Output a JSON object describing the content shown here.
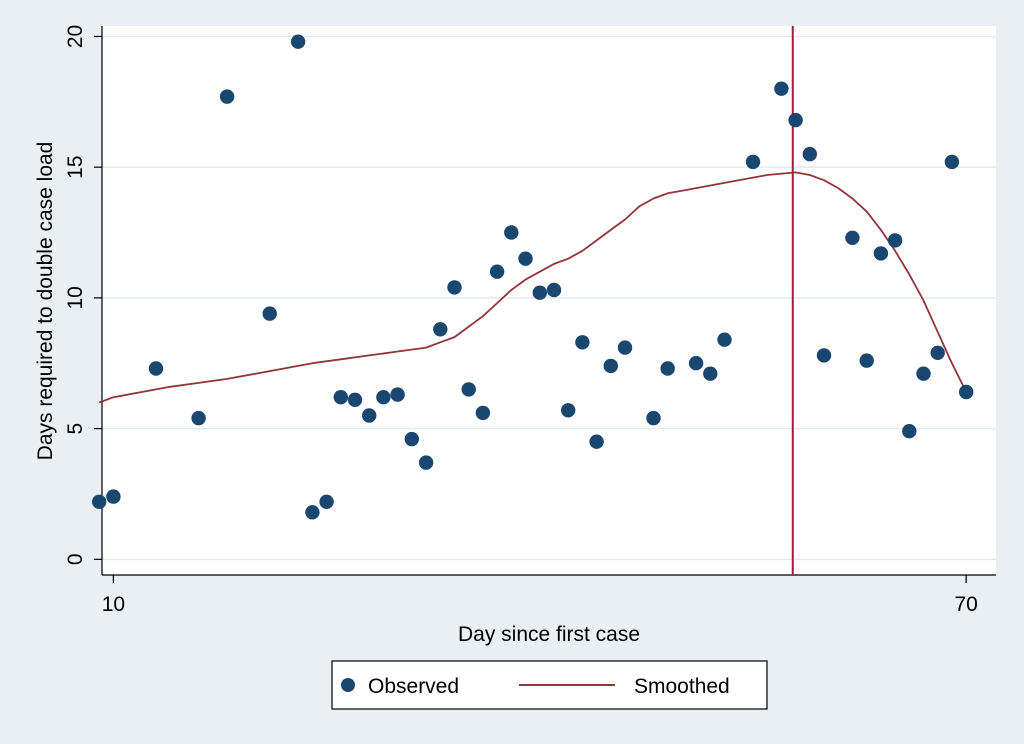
{
  "chart_data": {
    "type": "scatter",
    "title": "",
    "xlabel": "Day since first case",
    "ylabel": "Days required to double case load",
    "xlim": [
      9.2,
      72.1
    ],
    "ylim": [
      -0.6,
      20.4
    ],
    "xticks": [
      10,
      70
    ],
    "yticks": [
      0,
      5,
      10,
      15,
      20
    ],
    "grid": "horizontal",
    "legend_position": "bottom",
    "vline": {
      "x": 57.8,
      "color": "#a6193b"
    },
    "series": [
      {
        "name": "Observed",
        "kind": "scatter",
        "color": "#1a476f",
        "points": [
          [
            9,
            2.2
          ],
          [
            10,
            2.4
          ],
          [
            13,
            7.3
          ],
          [
            16,
            5.4
          ],
          [
            18,
            17.7
          ],
          [
            21,
            9.4
          ],
          [
            23,
            19.8
          ],
          [
            24,
            1.8
          ],
          [
            25,
            2.2
          ],
          [
            26,
            6.2
          ],
          [
            27,
            6.1
          ],
          [
            28,
            5.5
          ],
          [
            29,
            6.2
          ],
          [
            30,
            6.3
          ],
          [
            31,
            4.6
          ],
          [
            32,
            3.7
          ],
          [
            33,
            8.8
          ],
          [
            34,
            10.4
          ],
          [
            35,
            6.5
          ],
          [
            36,
            5.6
          ],
          [
            37,
            11.0
          ],
          [
            38,
            12.5
          ],
          [
            39,
            11.5
          ],
          [
            40,
            10.2
          ],
          [
            41,
            10.3
          ],
          [
            42,
            5.7
          ],
          [
            43,
            8.3
          ],
          [
            44,
            4.5
          ],
          [
            45,
            7.4
          ],
          [
            46,
            8.1
          ],
          [
            48,
            5.4
          ],
          [
            49,
            7.3
          ],
          [
            51,
            7.5
          ],
          [
            52,
            7.1
          ],
          [
            53,
            8.4
          ],
          [
            55,
            15.2
          ],
          [
            57,
            18.0
          ],
          [
            58,
            16.8
          ],
          [
            59,
            15.5
          ],
          [
            60,
            7.8
          ],
          [
            62,
            12.3
          ],
          [
            63,
            7.6
          ],
          [
            64,
            11.7
          ],
          [
            65,
            12.2
          ],
          [
            66,
            4.9
          ],
          [
            67,
            7.1
          ],
          [
            68,
            7.9
          ],
          [
            69,
            15.2
          ],
          [
            70,
            6.4
          ]
        ]
      },
      {
        "name": "Smoothed",
        "kind": "line",
        "color": "#90353b",
        "points": [
          [
            9,
            6.0
          ],
          [
            10,
            6.2
          ],
          [
            12,
            6.4
          ],
          [
            14,
            6.6
          ],
          [
            16,
            6.75
          ],
          [
            18,
            6.9
          ],
          [
            20,
            7.1
          ],
          [
            22,
            7.3
          ],
          [
            24,
            7.5
          ],
          [
            26,
            7.65
          ],
          [
            28,
            7.8
          ],
          [
            30,
            7.95
          ],
          [
            32,
            8.1
          ],
          [
            33,
            8.3
          ],
          [
            34,
            8.5
          ],
          [
            35,
            8.9
          ],
          [
            36,
            9.3
          ],
          [
            37,
            9.8
          ],
          [
            38,
            10.3
          ],
          [
            39,
            10.7
          ],
          [
            40,
            11.0
          ],
          [
            41,
            11.3
          ],
          [
            42,
            11.5
          ],
          [
            43,
            11.8
          ],
          [
            44,
            12.2
          ],
          [
            45,
            12.6
          ],
          [
            46,
            13.0
          ],
          [
            47,
            13.5
          ],
          [
            48,
            13.8
          ],
          [
            49,
            14.0
          ],
          [
            50,
            14.1
          ],
          [
            52,
            14.3
          ],
          [
            54,
            14.5
          ],
          [
            56,
            14.7
          ],
          [
            58,
            14.8
          ],
          [
            59,
            14.7
          ],
          [
            60,
            14.5
          ],
          [
            61,
            14.2
          ],
          [
            62,
            13.8
          ],
          [
            63,
            13.3
          ],
          [
            64,
            12.6
          ],
          [
            65,
            11.8
          ],
          [
            66,
            10.9
          ],
          [
            67,
            9.9
          ],
          [
            68,
            8.7
          ],
          [
            69,
            7.5
          ],
          [
            70,
            6.4
          ]
        ]
      }
    ]
  }
}
